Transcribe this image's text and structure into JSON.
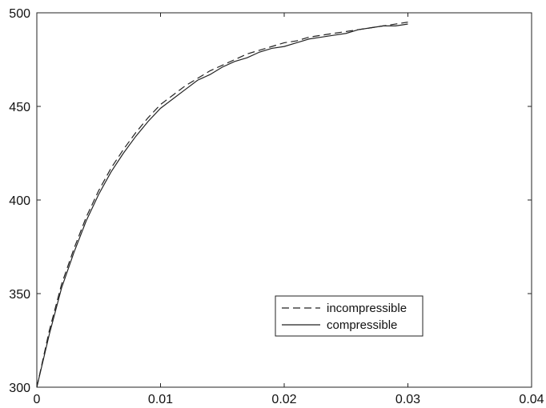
{
  "chart_data": {
    "type": "line",
    "title": "",
    "xlabel": "",
    "ylabel": "",
    "xlim": [
      0,
      0.04
    ],
    "ylim": [
      300,
      500
    ],
    "x_ticks": [
      0,
      0.01,
      0.02,
      0.03,
      0.04
    ],
    "x_tick_labels": [
      "0",
      "0.01",
      "0.02",
      "0.03",
      "0.04"
    ],
    "y_ticks": [
      300,
      350,
      400,
      450,
      500
    ],
    "y_tick_labels": [
      "300",
      "350",
      "400",
      "450",
      "500"
    ],
    "grid": false,
    "legend_position": "lower-right",
    "series": [
      {
        "name": "incompressible",
        "style": "dashed",
        "color": "#222222",
        "x": [
          0,
          0.001,
          0.002,
          0.003,
          0.004,
          0.005,
          0.006,
          0.007,
          0.008,
          0.009,
          0.01,
          0.011,
          0.012,
          0.013,
          0.014,
          0.015,
          0.016,
          0.017,
          0.018,
          0.019,
          0.02,
          0.021,
          0.022,
          0.023,
          0.024,
          0.025,
          0.026,
          0.027,
          0.028,
          0.029,
          0.03
        ],
        "y": [
          300,
          330,
          355,
          374,
          391,
          405,
          417,
          427,
          436,
          444,
          451,
          456,
          461,
          465,
          469,
          472,
          475,
          478,
          480,
          482,
          484,
          485,
          487,
          488,
          489,
          490,
          491,
          492,
          493,
          494,
          495
        ]
      },
      {
        "name": "compressible",
        "style": "solid",
        "color": "#222222",
        "x": [
          0,
          0.001,
          0.002,
          0.003,
          0.004,
          0.005,
          0.006,
          0.007,
          0.008,
          0.009,
          0.01,
          0.011,
          0.012,
          0.013,
          0.014,
          0.015,
          0.016,
          0.017,
          0.018,
          0.019,
          0.02,
          0.021,
          0.022,
          0.023,
          0.024,
          0.025,
          0.026,
          0.027,
          0.028,
          0.029,
          0.03
        ],
        "y": [
          300,
          328,
          353,
          372,
          389,
          403,
          415,
          425,
          434,
          442,
          449,
          454,
          459,
          464,
          467,
          471,
          474,
          476,
          479,
          481,
          482,
          484,
          486,
          487,
          488,
          489,
          491,
          492,
          493,
          493,
          494
        ]
      }
    ]
  }
}
